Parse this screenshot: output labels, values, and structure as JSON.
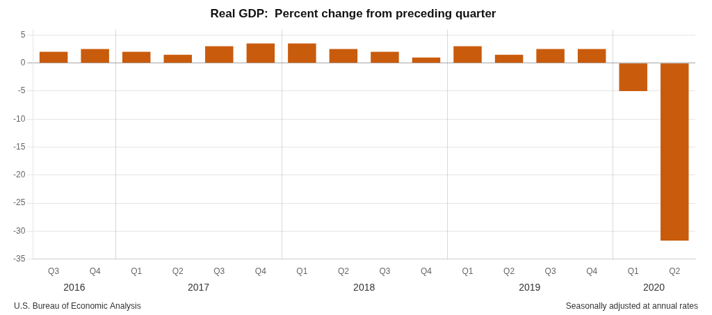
{
  "chart_data": {
    "type": "bar",
    "title": "Real GDP:  Percent change from preceding quarter",
    "categories": [
      "Q3",
      "Q4",
      "Q1",
      "Q2",
      "Q3",
      "Q4",
      "Q1",
      "Q2",
      "Q3",
      "Q4",
      "Q1",
      "Q2",
      "Q3",
      "Q4",
      "Q1",
      "Q2"
    ],
    "values": [
      2.0,
      2.5,
      2.0,
      1.5,
      3.0,
      3.5,
      3.5,
      2.5,
      2.0,
      1.0,
      3.0,
      1.5,
      2.5,
      2.5,
      -5.0,
      -31.7
    ],
    "color": "#C95B0C",
    "ylim": [
      -35,
      6
    ],
    "yticks": [
      5,
      0,
      -5,
      -10,
      -15,
      -20,
      -25,
      -30,
      -35
    ],
    "grid": true,
    "annotations": [
      {
        "text": "2016",
        "start": 0,
        "end": 1
      },
      {
        "text": "2017",
        "start": 2,
        "end": 5
      },
      {
        "text": "2018",
        "start": 6,
        "end": 9
      },
      {
        "text": "2019",
        "start": 10,
        "end": 13
      },
      {
        "text": "2020",
        "start": 14,
        "end": 15
      }
    ],
    "footer": [
      "U.S. Bureau of Economic Analysis",
      "Seasonally adjusted at annual rates"
    ]
  }
}
